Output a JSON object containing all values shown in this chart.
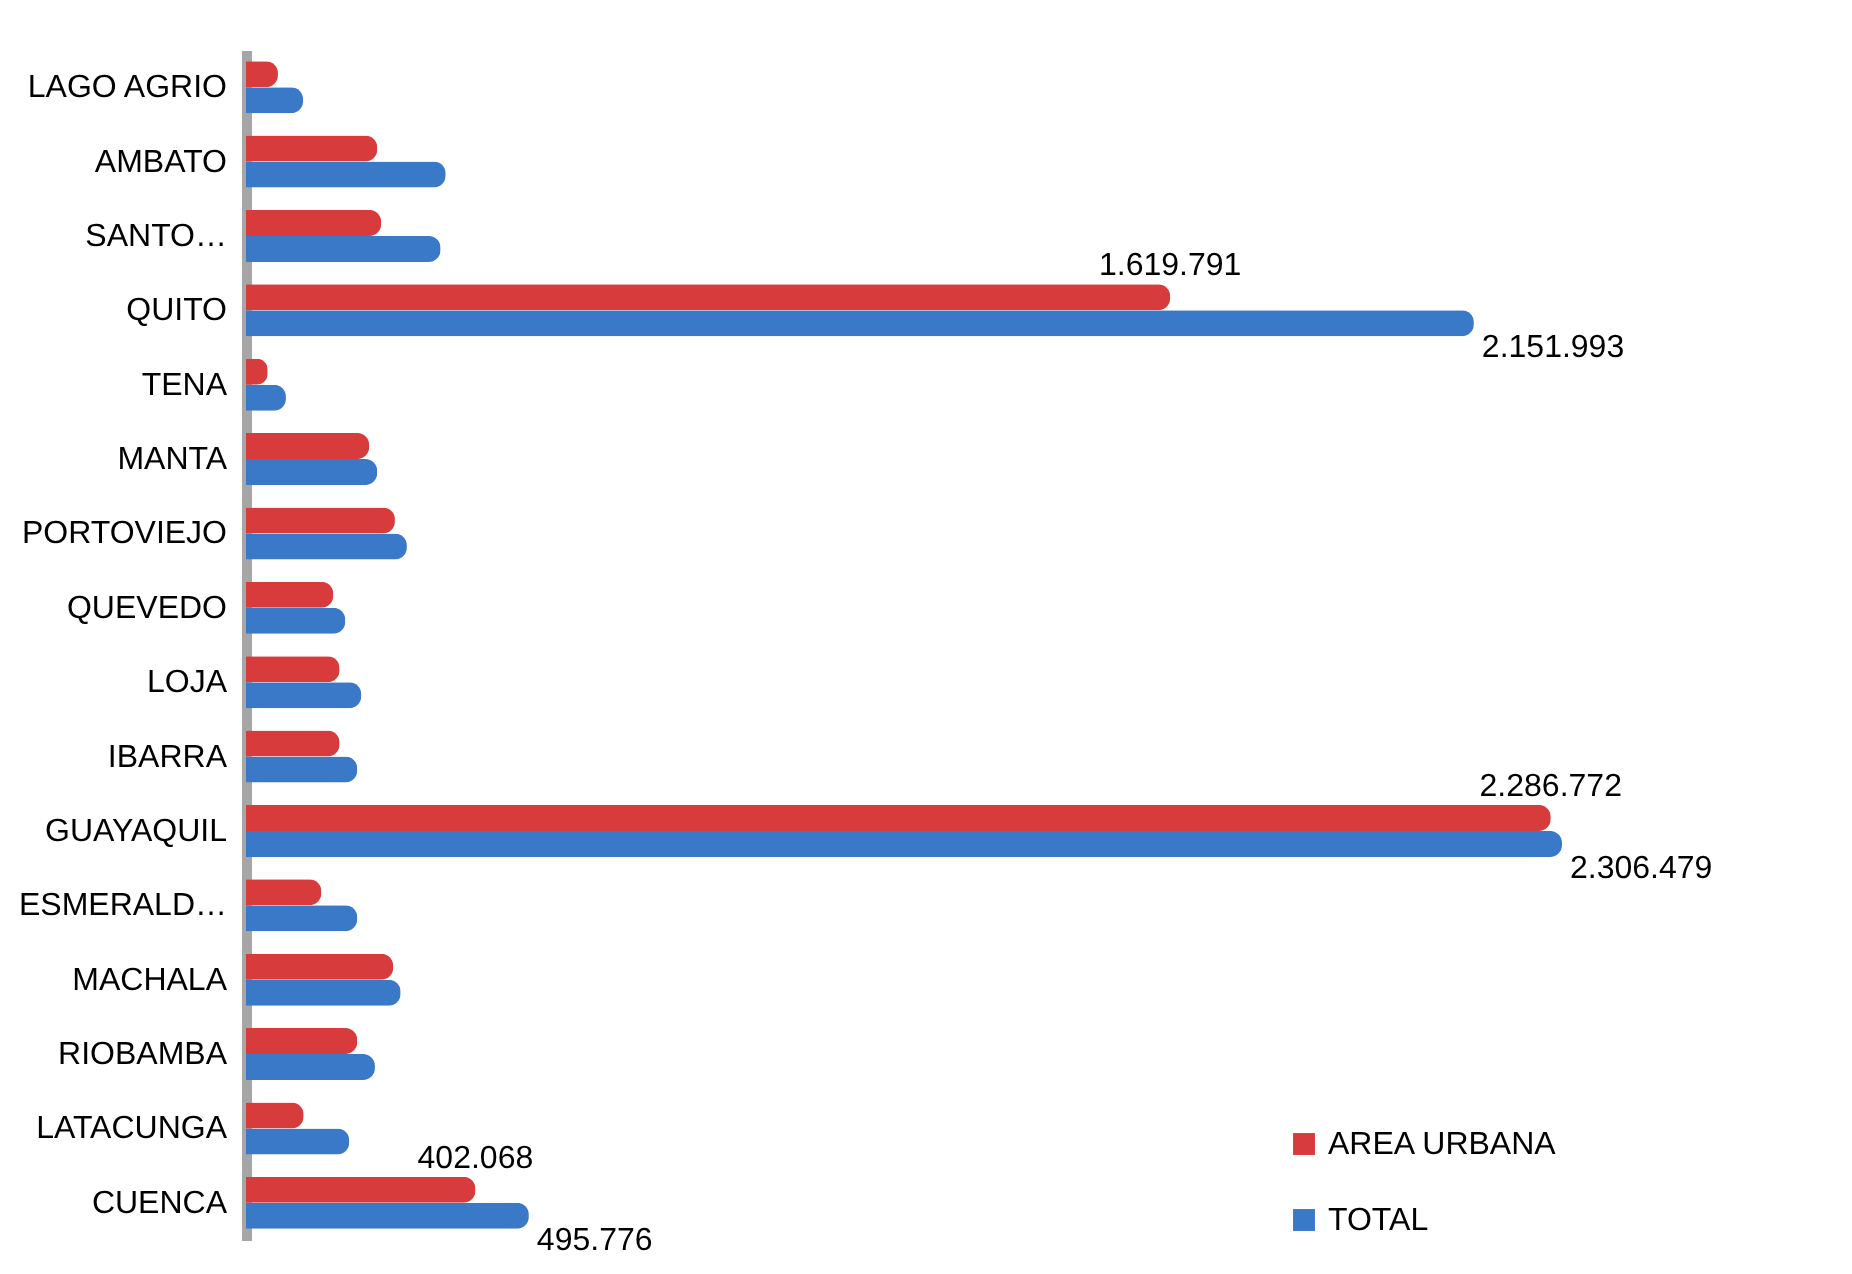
{
  "chart_data": {
    "type": "bar",
    "orientation": "horizontal",
    "legend": "bottom right",
    "categories": [
      "LAGO AGRIO",
      "AMBATO",
      "SANTO…",
      "QUITO",
      "TENA",
      "MANTA",
      "PORTOVIEJO",
      "QUEVEDO",
      "LOJA",
      "IBARRA",
      "GUAYAQUIL",
      "ESMERALD…",
      "MACHALA",
      "RIOBAMBA",
      "LATACUNGA",
      "CUENCA"
    ],
    "series": [
      {
        "name": "AREA URBANA",
        "color": "#d83b3b",
        "values": [
          56000,
          230000,
          237000,
          1619791,
          38000,
          216000,
          261000,
          153000,
          164000,
          164000,
          2286772,
          132000,
          258000,
          195000,
          101000,
          402068
        ],
        "value_labels": [
          null,
          null,
          null,
          "1.619.791",
          null,
          null,
          null,
          null,
          null,
          null,
          "2.286.772",
          null,
          null,
          null,
          null,
          "402.068"
        ]
      },
      {
        "name": "TOTAL",
        "color": "#3a78c8",
        "values": [
          100000,
          350000,
          341000,
          2151993,
          70000,
          230000,
          282000,
          174000,
          202000,
          195000,
          2306479,
          195000,
          271000,
          226000,
          181000,
          495776
        ],
        "value_labels": [
          null,
          null,
          null,
          "2.151.993",
          null,
          null,
          null,
          null,
          null,
          null,
          "2.306.479",
          null,
          null,
          null,
          null,
          "495.776"
        ]
      }
    ]
  }
}
